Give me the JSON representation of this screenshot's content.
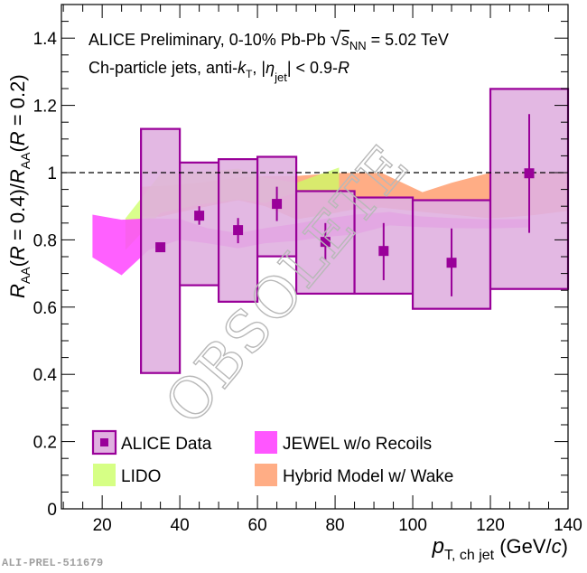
{
  "figure_id": "ALI-PREL-511679",
  "watermark": "OBSOLETE",
  "chart_data": {
    "type": "bar",
    "title_line1": {
      "text": "ALICE Preliminary, 0-10% Pb-Pb ",
      "sqrt_symbol": "√",
      "s": "s",
      "s_sub": "NN",
      "energy": " = 5.02 TeV"
    },
    "title_line2": {
      "text": "Ch-particle jets, anti-",
      "k": "k",
      "k_sub": "T",
      "sep": ", |",
      "eta": "η",
      "eta_sub": "jet",
      "cut": "| < 0.9-",
      "R": "R"
    },
    "xlabel": {
      "p": "p",
      "sub": "T, ch jet",
      "units_open": " (GeV/",
      "c": "c",
      "units_close": ")"
    },
    "ylabel": {
      "R1": "R",
      "sub1": "AA",
      "open1": "(",
      "Rv1": "R",
      "eq1": " = 0.4)/",
      "R2": "R",
      "sub2": "AA",
      "open2": "(",
      "Rv2": "R",
      "eq2": " = 0.2)"
    },
    "xlim": [
      9.5,
      140
    ],
    "ylim": [
      0,
      1.5
    ],
    "x_ticks": [
      20,
      40,
      60,
      80,
      100,
      120,
      140
    ],
    "y_ticks": [
      0,
      0.2,
      0.4,
      0.6,
      0.8,
      1,
      1.2,
      1.4
    ],
    "y_tick_labels": [
      "0",
      "0.2",
      "0.4",
      "0.6",
      "0.8",
      "1",
      "1.2",
      "1.4"
    ],
    "reference_line": 1.0,
    "legend": [
      {
        "label": "ALICE Data",
        "color": "#990099"
      },
      {
        "label": "JEWEL w/o Recoils",
        "color": "#ff44ff"
      },
      {
        "label": "LIDO",
        "color": "#ccff66"
      },
      {
        "label": "Hybrid Model w/ Wake",
        "color": "#ff9966"
      }
    ],
    "series": [
      {
        "name": "ALICE Data",
        "type": "points_with_syst_boxes",
        "color": "#990099",
        "box_fill": "#e0b0e0",
        "points": [
          {
            "x_low": 30,
            "x_high": 40,
            "x": 35,
            "y": 0.778,
            "stat_low": 0.778,
            "stat_high": 0.778,
            "syst_low": 0.404,
            "syst_high": 1.13
          },
          {
            "x_low": 40,
            "x_high": 50,
            "x": 45,
            "y": 0.872,
            "stat_low": 0.845,
            "stat_high": 0.9,
            "syst_low": 0.665,
            "syst_high": 1.03
          },
          {
            "x_low": 50,
            "x_high": 60,
            "x": 55,
            "y": 0.829,
            "stat_low": 0.79,
            "stat_high": 0.865,
            "syst_low": 0.616,
            "syst_high": 1.04
          },
          {
            "x_low": 60,
            "x_high": 70,
            "x": 65,
            "y": 0.907,
            "stat_low": 0.856,
            "stat_high": 0.958,
            "syst_low": 0.751,
            "syst_high": 1.047
          },
          {
            "x_low": 70,
            "x_high": 85,
            "x": 77.5,
            "y": 0.794,
            "stat_low": 0.74,
            "stat_high": 0.85,
            "syst_low": 0.64,
            "syst_high": 0.945
          },
          {
            "x_low": 85,
            "x_high": 100,
            "x": 92.5,
            "y": 0.767,
            "stat_low": 0.68,
            "stat_high": 0.85,
            "syst_low": 0.64,
            "syst_high": 0.926
          },
          {
            "x_low": 100,
            "x_high": 120,
            "x": 110,
            "y": 0.732,
            "stat_low": 0.632,
            "stat_high": 0.834,
            "syst_low": 0.595,
            "syst_high": 0.918
          },
          {
            "x_low": 120,
            "x_high": 140,
            "x": 130,
            "y": 0.998,
            "stat_low": 0.821,
            "stat_high": 1.174,
            "syst_low": 0.654,
            "syst_high": 1.249
          }
        ]
      },
      {
        "name": "Hybrid Model w/ Wake",
        "type": "band",
        "color": "#ff9966",
        "x": [
          30,
          35,
          45,
          55,
          62,
          70,
          80,
          85,
          92,
          102.5,
          110,
          120,
          130,
          140
        ],
        "low": [
          0.87,
          0.869,
          0.895,
          0.918,
          0.9,
          0.861,
          0.88,
          0.891,
          0.896,
          0.883,
          0.875,
          0.864,
          0.872,
          0.886
        ],
        "high": [
          0.958,
          0.96,
          0.97,
          0.985,
          0.99,
          0.99,
          0.999,
          0.999,
          0.999,
          0.942,
          0.97,
          1.0,
          1.0,
          1.0
        ]
      },
      {
        "name": "LIDO",
        "type": "band",
        "color": "#ccff66",
        "x": [
          26,
          35,
          45,
          55,
          62,
          70,
          81
        ],
        "low": [
          0.77,
          0.88,
          0.905,
          0.92,
          0.91,
          0.942,
          0.945
        ],
        "high": [
          0.864,
          0.996,
          1.0,
          1.012,
          0.985,
          0.97,
          1.015
        ]
      },
      {
        "name": "JEWEL w/o Recoils",
        "type": "band",
        "color": "#ff44ff",
        "x": [
          17.5,
          25,
          32,
          40,
          47,
          55,
          62,
          70,
          77,
          85,
          94,
          102,
          110,
          120,
          130
        ],
        "low": [
          0.748,
          0.695,
          0.77,
          0.8,
          0.79,
          0.775,
          0.79,
          0.797,
          0.808,
          0.816,
          0.843,
          0.838,
          0.835,
          0.834,
          0.837
        ],
        "high": [
          0.875,
          0.86,
          0.864,
          0.862,
          0.835,
          0.82,
          0.835,
          0.848,
          0.862,
          0.875,
          0.883,
          0.87,
          0.865,
          0.861,
          0.862
        ]
      }
    ]
  }
}
